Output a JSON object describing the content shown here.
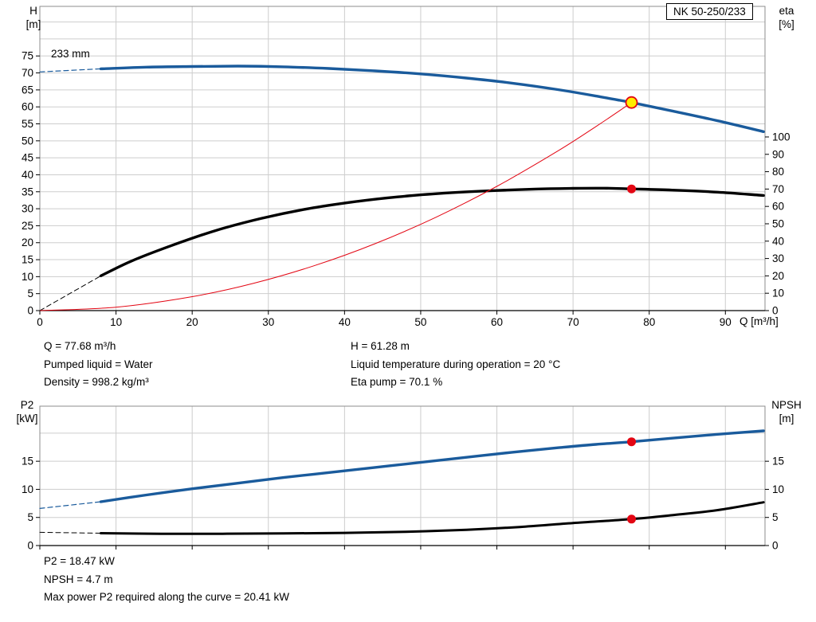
{
  "pump_label": "NK 50-250/233",
  "impeller_label": "233 mm",
  "axis_titles": {
    "qh_left": "H\n[m]",
    "qh_right": "eta\n[%]",
    "q": "Q [m³/h]",
    "p2_left": "P2\n[kW]",
    "p2_right": "NPSH\n[m]"
  },
  "info_top": {
    "col1": [
      "Q = 77.68 m³/h",
      "Pumped liquid = Water",
      "Density = 998.2 kg/m³"
    ],
    "col2": [
      "H = 61.28 m",
      "Liquid temperature during operation = 20 °C",
      "Eta pump = 70.1 %"
    ]
  },
  "info_bottom": [
    "P2 = 18.47 kW",
    "NPSH = 4.7 m",
    "Max power P2 required along the curve = 20.41 kW"
  ],
  "colors": {
    "blue": "#1a5b9c",
    "black": "#000000",
    "red": "#e30613",
    "duty_yellow": "#ffed00",
    "grid": "#cdcdcd",
    "border": "#8c8c8c"
  },
  "chart_data": [
    {
      "type": "line",
      "title": "QH and efficiency curves",
      "x": {
        "label": "Q [m³/h]",
        "min": 0,
        "max": 95.2,
        "ticks": [
          0,
          10,
          20,
          30,
          40,
          50,
          60,
          70,
          80,
          90
        ],
        "show_labels": true
      },
      "y_left": {
        "label": "H [m]",
        "min": 0,
        "max": 89.6,
        "ticks": [
          0,
          5,
          10,
          15,
          20,
          25,
          30,
          35,
          40,
          45,
          50,
          55,
          60,
          65,
          70,
          75
        ],
        "grid": [
          5,
          10,
          15,
          20,
          25,
          30,
          35,
          40,
          45,
          50,
          55,
          60,
          65,
          70,
          75,
          80,
          85
        ]
      },
      "y_right": {
        "label": "eta [%]",
        "min": 0,
        "max": 175.2,
        "ticks": [
          0,
          10,
          20,
          30,
          40,
          50,
          60,
          70,
          80,
          90,
          100
        ]
      },
      "series": [
        {
          "name": "head-curve-233mm",
          "axis": "left",
          "color_key": "blue",
          "width": 3.4,
          "points": [
            [
              8,
              71.2
            ],
            [
              14,
              71.7
            ],
            [
              20,
              71.9
            ],
            [
              26,
              72.0
            ],
            [
              32,
              71.8
            ],
            [
              38,
              71.3
            ],
            [
              44,
              70.6
            ],
            [
              50,
              69.7
            ],
            [
              56,
              68.5
            ],
            [
              62,
              67.0
            ],
            [
              68,
              65.1
            ],
            [
              73,
              63.2
            ],
            [
              77.68,
              61.28
            ],
            [
              83,
              58.8
            ],
            [
              89,
              55.9
            ],
            [
              95,
              52.7
            ]
          ]
        },
        {
          "name": "head-curve-extrapolation",
          "axis": "left",
          "color_key": "blue",
          "width": 1.2,
          "dash": true,
          "points": [
            [
              0,
              70.3
            ],
            [
              8,
              71.2
            ]
          ]
        },
        {
          "name": "eta-curve",
          "axis": "right",
          "color_key": "black",
          "width": 3.4,
          "points": [
            [
              8,
              20
            ],
            [
              12,
              28.5
            ],
            [
              17,
              37
            ],
            [
              23,
              46
            ],
            [
              29,
              53
            ],
            [
              35,
              58.5
            ],
            [
              41,
              62.5
            ],
            [
              47,
              65.5
            ],
            [
              53,
              67.6
            ],
            [
              59,
              69.0
            ],
            [
              65,
              70.0
            ],
            [
              70,
              70.4
            ],
            [
              74,
              70.5
            ],
            [
              77.68,
              70.1
            ],
            [
              83,
              69.4
            ],
            [
              89,
              68.2
            ],
            [
              95,
              66.3
            ]
          ]
        },
        {
          "name": "eta-curve-extrapolation",
          "axis": "right",
          "color_key": "black",
          "width": 1,
          "dash": true,
          "points": [
            [
              0,
              0
            ],
            [
              8,
              20
            ]
          ]
        },
        {
          "name": "system-curve",
          "axis": "left",
          "color_key": "red",
          "width": 1,
          "points": [
            [
              0,
              0
            ],
            [
              10,
              1.0
            ],
            [
              20,
              4.1
            ],
            [
              28,
              8.0
            ],
            [
              36,
              13.2
            ],
            [
              44,
              19.7
            ],
            [
              52,
              27.5
            ],
            [
              60,
              36.6
            ],
            [
              68,
              47.0
            ],
            [
              73,
              54.2
            ],
            [
              77.68,
              61.28
            ]
          ]
        }
      ],
      "markers": [
        {
          "name": "duty-point-head",
          "axis": "left",
          "x": 77.68,
          "y": 61.28,
          "style": "yellow"
        },
        {
          "name": "duty-point-eta",
          "axis": "right",
          "x": 77.68,
          "y": 70.1,
          "style": "red"
        }
      ]
    },
    {
      "type": "line",
      "title": "Power and NPSH curves",
      "x": {
        "label": "Q [m³/h]",
        "min": 0,
        "max": 95.2,
        "ticks": [
          0,
          10,
          20,
          30,
          40,
          50,
          60,
          70,
          80,
          90
        ],
        "show_labels": false
      },
      "y_left": {
        "label": "P2 [kW]",
        "min": 0,
        "max": 24.8,
        "ticks": [
          0,
          5,
          10,
          15
        ],
        "grid": [
          5,
          10,
          15,
          20
        ]
      },
      "y_right": {
        "label": "NPSH [m]",
        "min": 0,
        "max": 24.8,
        "ticks": [
          0,
          5,
          10,
          15
        ]
      },
      "series": [
        {
          "name": "p2-curve",
          "axis": "left",
          "color_key": "blue",
          "width": 3.4,
          "points": [
            [
              8,
              7.8
            ],
            [
              14,
              9.0
            ],
            [
              20,
              10.1
            ],
            [
              26,
              11.1
            ],
            [
              32,
              12.1
            ],
            [
              38,
              13.0
            ],
            [
              44,
              13.9
            ],
            [
              50,
              14.8
            ],
            [
              56,
              15.7
            ],
            [
              62,
              16.6
            ],
            [
              68,
              17.4
            ],
            [
              73,
              18.0
            ],
            [
              77.68,
              18.47
            ],
            [
              83,
              19.1
            ],
            [
              89,
              19.8
            ],
            [
              95,
              20.41
            ]
          ]
        },
        {
          "name": "p2-curve-extrapolation",
          "axis": "left",
          "color_key": "blue",
          "width": 1.2,
          "dash": true,
          "points": [
            [
              0,
              6.6
            ],
            [
              8,
              7.8
            ]
          ]
        },
        {
          "name": "npsh-curve",
          "axis": "right",
          "color_key": "black",
          "width": 3,
          "points": [
            [
              8,
              2.2
            ],
            [
              16,
              2.1
            ],
            [
              24,
              2.1
            ],
            [
              32,
              2.15
            ],
            [
              40,
              2.25
            ],
            [
              48,
              2.45
            ],
            [
              56,
              2.8
            ],
            [
              63,
              3.3
            ],
            [
              70,
              4.0
            ],
            [
              77.68,
              4.7
            ],
            [
              83,
              5.4
            ],
            [
              89,
              6.3
            ],
            [
              95,
              7.7
            ]
          ]
        },
        {
          "name": "npsh-curve-extrapolation",
          "axis": "right",
          "color_key": "black",
          "width": 1,
          "dash": true,
          "points": [
            [
              0,
              2.35
            ],
            [
              8,
              2.2
            ]
          ]
        }
      ],
      "markers": [
        {
          "name": "duty-point-p2",
          "axis": "left",
          "x": 77.68,
          "y": 18.47,
          "style": "red"
        },
        {
          "name": "duty-point-npsh",
          "axis": "right",
          "x": 77.68,
          "y": 4.7,
          "style": "red"
        }
      ]
    }
  ]
}
